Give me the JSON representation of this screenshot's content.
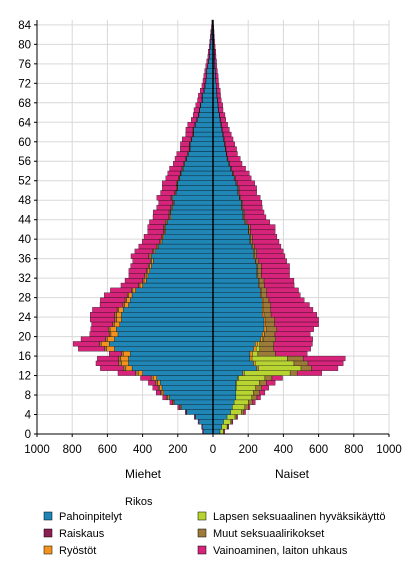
{
  "chart_data": {
    "type": "bar",
    "orientation": "population-pyramid",
    "y": [
      0,
      1,
      2,
      3,
      4,
      5,
      6,
      7,
      8,
      9,
      10,
      11,
      12,
      13,
      14,
      15,
      16,
      17,
      18,
      19,
      20,
      21,
      22,
      23,
      24,
      25,
      26,
      27,
      28,
      29,
      30,
      31,
      32,
      33,
      34,
      35,
      36,
      37,
      38,
      39,
      40,
      41,
      42,
      43,
      44,
      45,
      46,
      47,
      48,
      49,
      50,
      51,
      52,
      53,
      54,
      55,
      56,
      57,
      58,
      59,
      60,
      61,
      62,
      63,
      64,
      65,
      66,
      67,
      68,
      69,
      70,
      71,
      72,
      73,
      74,
      75,
      76,
      77,
      78,
      79,
      80,
      81,
      82,
      83,
      84
    ],
    "ylim": [
      0,
      84
    ],
    "yticks": [
      0,
      4,
      8,
      12,
      16,
      20,
      24,
      28,
      32,
      36,
      40,
      44,
      48,
      52,
      56,
      60,
      64,
      68,
      72,
      76,
      80,
      84
    ],
    "xlim": [
      -1000,
      1000
    ],
    "xticks": [
      -1000,
      -800,
      -600,
      -400,
      -200,
      0,
      200,
      400,
      600,
      800,
      1000
    ],
    "xtick_labels": [
      "1000",
      "800",
      "600",
      "400",
      "200",
      "0",
      "200",
      "400",
      "600",
      "800",
      "1000"
    ],
    "left_label": "Miehet",
    "right_label": "Naiset",
    "legend_title": "Rikos",
    "legend_position": "bottom",
    "colors": {
      "Pahoinpitelyt": "#1f86b6",
      "Raiskaus": "#8e1f55",
      "Ryöstöt": "#f4921e",
      "Lapsen seksuaalinen hyväksikäyttö": "#b8d432",
      "Muut seksuaalirikokset": "#9c7a3a",
      "Vainoaminen, laiton uhkaus": "#d6247a"
    },
    "legend_order": [
      "Pahoinpitelyt",
      "Raiskaus",
      "Ryöstöt",
      "Lapsen seksuaalinen hyväksikäyttö",
      "Muut seksuaalirikokset",
      "Vainoaminen, laiton uhkaus"
    ],
    "men": {
      "Pahoinpitelyt": [
        55,
        60,
        80,
        100,
        150,
        180,
        220,
        250,
        280,
        290,
        300,
        320,
        400,
        460,
        480,
        480,
        470,
        560,
        590,
        560,
        540,
        550,
        530,
        520,
        520,
        510,
        480,
        470,
        460,
        440,
        400,
        380,
        370,
        360,
        350,
        340,
        350,
        330,
        310,
        290,
        280,
        270,
        270,
        260,
        240,
        240,
        230,
        220,
        230,
        210,
        200,
        200,
        190,
        180,
        170,
        160,
        150,
        140,
        130,
        130,
        120,
        110,
        110,
        100,
        90,
        80,
        75,
        70,
        60,
        60,
        50,
        45,
        40,
        35,
        35,
        30,
        25,
        20,
        18,
        15,
        12,
        10,
        8,
        6,
        5
      ],
      "Raiskaus": [
        0,
        0,
        0,
        0,
        0,
        0,
        0,
        0,
        0,
        0,
        0,
        0,
        0,
        0,
        0,
        0,
        0,
        0,
        0,
        0,
        0,
        0,
        0,
        0,
        0,
        0,
        0,
        0,
        0,
        0,
        0,
        0,
        0,
        0,
        0,
        0,
        0,
        0,
        0,
        0,
        0,
        0,
        0,
        0,
        0,
        0,
        0,
        0,
        0,
        0,
        0,
        0,
        0,
        0,
        0,
        0,
        0,
        0,
        0,
        0,
        0,
        0,
        0,
        0,
        0,
        0,
        0,
        0,
        0,
        0,
        0,
        0,
        0,
        0,
        0,
        0,
        0,
        0,
        0,
        0,
        0,
        0,
        0,
        0,
        0
      ],
      "Ryöstöt": [
        0,
        0,
        0,
        0,
        0,
        5,
        5,
        8,
        10,
        12,
        15,
        20,
        25,
        35,
        40,
        45,
        40,
        45,
        45,
        40,
        40,
        35,
        30,
        28,
        28,
        25,
        22,
        20,
        18,
        15,
        15,
        12,
        10,
        10,
        10,
        8,
        8,
        8,
        6,
        6,
        6,
        5,
        5,
        5,
        5,
        4,
        4,
        4,
        4,
        3,
        3,
        3,
        3,
        3,
        3,
        2,
        2,
        2,
        2,
        2,
        2,
        2,
        1,
        1,
        1,
        1,
        1,
        1,
        1,
        1,
        1,
        1,
        0,
        0,
        0,
        0,
        0,
        0,
        0,
        0,
        0,
        0,
        0,
        0,
        0
      ],
      "Lapsen seksuaalinen hyväksikäyttö": [
        0,
        0,
        0,
        0,
        0,
        0,
        0,
        0,
        0,
        0,
        0,
        0,
        0,
        0,
        0,
        0,
        0,
        0,
        0,
        0,
        0,
        0,
        0,
        0,
        0,
        0,
        0,
        0,
        0,
        0,
        0,
        0,
        0,
        0,
        0,
        0,
        0,
        0,
        0,
        0,
        0,
        0,
        0,
        0,
        0,
        0,
        0,
        0,
        0,
        0,
        0,
        0,
        0,
        0,
        0,
        0,
        0,
        0,
        0,
        0,
        0,
        0,
        0,
        0,
        0,
        0,
        0,
        0,
        0,
        0,
        0,
        0,
        0,
        0,
        0,
        0,
        0,
        0,
        0,
        0,
        0,
        0,
        0,
        0,
        0
      ],
      "Muut seksuaalirikokset": [
        0,
        0,
        0,
        2,
        3,
        5,
        5,
        8,
        8,
        10,
        12,
        12,
        15,
        15,
        15,
        12,
        10,
        10,
        10,
        10,
        10,
        10,
        10,
        10,
        10,
        10,
        10,
        10,
        10,
        8,
        8,
        8,
        8,
        8,
        8,
        8,
        8,
        6,
        6,
        6,
        6,
        6,
        6,
        6,
        6,
        6,
        6,
        5,
        5,
        5,
        5,
        5,
        5,
        4,
        4,
        4,
        4,
        4,
        4,
        3,
        3,
        3,
        3,
        3,
        3,
        2,
        2,
        2,
        2,
        2,
        2,
        2,
        2,
        2,
        2,
        1,
        1,
        1,
        1,
        1,
        1,
        1,
        1,
        0,
        0
      ],
      "Vainoaminen, laiton uhkaus": [
        5,
        5,
        5,
        5,
        5,
        10,
        15,
        20,
        25,
        30,
        40,
        60,
        100,
        130,
        130,
        120,
        70,
        150,
        150,
        140,
        110,
        100,
        120,
        140,
        140,
        140,
        130,
        140,
        130,
        120,
        100,
        100,
        90,
        100,
        100,
        100,
        100,
        100,
        100,
        100,
        100,
        90,
        90,
        90,
        90,
        90,
        80,
        80,
        80,
        80,
        80,
        80,
        70,
        70,
        70,
        60,
        60,
        60,
        50,
        50,
        50,
        40,
        40,
        40,
        30,
        30,
        30,
        25,
        25,
        20,
        20,
        15,
        15,
        15,
        10,
        10,
        10,
        8,
        8,
        6,
        6,
        5,
        4,
        3,
        2
      ]
    },
    "women": {
      "Pahoinpitelyt": [
        40,
        50,
        60,
        80,
        100,
        110,
        120,
        130,
        130,
        130,
        130,
        140,
        170,
        250,
        230,
        210,
        210,
        230,
        240,
        270,
        280,
        290,
        290,
        290,
        280,
        280,
        280,
        280,
        270,
        270,
        260,
        260,
        250,
        250,
        250,
        240,
        230,
        230,
        220,
        210,
        210,
        200,
        200,
        180,
        170,
        170,
        160,
        160,
        150,
        140,
        140,
        130,
        120,
        110,
        100,
        90,
        80,
        75,
        70,
        65,
        60,
        55,
        50,
        45,
        40,
        35,
        30,
        28,
        25,
        22,
        20,
        18,
        15,
        13,
        12,
        10,
        9,
        8,
        7,
        6,
        5,
        4,
        3,
        2,
        1
      ],
      "Raiskaus": [
        0,
        0,
        0,
        0,
        0,
        0,
        0,
        0,
        0,
        0,
        0,
        0,
        0,
        0,
        0,
        0,
        0,
        0,
        0,
        0,
        0,
        0,
        0,
        0,
        0,
        0,
        0,
        0,
        0,
        0,
        0,
        0,
        0,
        0,
        0,
        0,
        0,
        0,
        0,
        0,
        0,
        0,
        0,
        0,
        0,
        0,
        0,
        0,
        0,
        0,
        0,
        0,
        0,
        0,
        0,
        0,
        0,
        0,
        0,
        0,
        0,
        0,
        0,
        0,
        0,
        0,
        0,
        0,
        0,
        0,
        0,
        0,
        0,
        0,
        0,
        0,
        0,
        0,
        0,
        0,
        0,
        0,
        0,
        0,
        0
      ],
      "Ryöstöt": [
        0,
        0,
        0,
        0,
        0,
        0,
        0,
        0,
        0,
        2,
        3,
        5,
        8,
        10,
        10,
        12,
        15,
        15,
        15,
        12,
        12,
        12,
        10,
        10,
        10,
        8,
        8,
        8,
        6,
        6,
        6,
        5,
        5,
        5,
        5,
        4,
        4,
        4,
        4,
        3,
        3,
        3,
        3,
        3,
        3,
        2,
        2,
        2,
        2,
        2,
        2,
        2,
        2,
        1,
        1,
        1,
        1,
        1,
        1,
        1,
        1,
        1,
        1,
        1,
        1,
        1,
        0,
        0,
        0,
        0,
        0,
        0,
        0,
        0,
        0,
        0,
        0,
        0,
        0,
        0,
        0,
        0,
        0,
        0,
        0
      ],
      "Lapsen seksuaalinen hyväksikäyttö": [
        20,
        30,
        40,
        45,
        60,
        70,
        80,
        90,
        100,
        110,
        130,
        150,
        260,
        240,
        220,
        200,
        30,
        20,
        10,
        5,
        0,
        0,
        0,
        0,
        0,
        0,
        0,
        0,
        0,
        0,
        0,
        0,
        0,
        0,
        0,
        0,
        0,
        0,
        0,
        0,
        0,
        0,
        0,
        0,
        0,
        0,
        0,
        0,
        0,
        0,
        0,
        0,
        0,
        0,
        0,
        0,
        0,
        0,
        0,
        0,
        0,
        0,
        0,
        0,
        0,
        0,
        0,
        0,
        0,
        0,
        0,
        0,
        0,
        0,
        0,
        0,
        0,
        0,
        0,
        0,
        0,
        0,
        0,
        0,
        0
      ],
      "Muut seksuaalirikokset": [
        2,
        5,
        8,
        10,
        15,
        20,
        25,
        30,
        35,
        35,
        40,
        40,
        40,
        60,
        80,
        90,
        100,
        80,
        80,
        70,
        60,
        60,
        50,
        50,
        40,
        40,
        40,
        30,
        30,
        30,
        25,
        25,
        20,
        20,
        20,
        15,
        15,
        15,
        12,
        12,
        10,
        10,
        10,
        10,
        8,
        8,
        8,
        6,
        6,
        6,
        6,
        5,
        5,
        5,
        4,
        4,
        4,
        3,
        3,
        3,
        3,
        3,
        2,
        2,
        2,
        2,
        2,
        2,
        2,
        1,
        1,
        1,
        1,
        1,
        1,
        1,
        1,
        1,
        1,
        0,
        0,
        0,
        0,
        0,
        0
      ],
      "Vainoaminen, laiton uhkaus": [
        5,
        5,
        5,
        5,
        10,
        10,
        15,
        20,
        30,
        40,
        50,
        60,
        140,
        150,
        200,
        240,
        180,
        210,
        220,
        210,
        200,
        210,
        250,
        250,
        260,
        240,
        220,
        200,
        190,
        180,
        170,
        170,
        160,
        160,
        160,
        160,
        160,
        150,
        150,
        150,
        140,
        140,
        140,
        130,
        120,
        110,
        110,
        110,
        110,
        100,
        100,
        100,
        90,
        90,
        80,
        70,
        70,
        60,
        60,
        55,
        50,
        45,
        40,
        35,
        30,
        30,
        25,
        25,
        20,
        20,
        20,
        15,
        15,
        15,
        12,
        10,
        10,
        8,
        8,
        6,
        5,
        4,
        3,
        2,
        1
      ]
    }
  }
}
